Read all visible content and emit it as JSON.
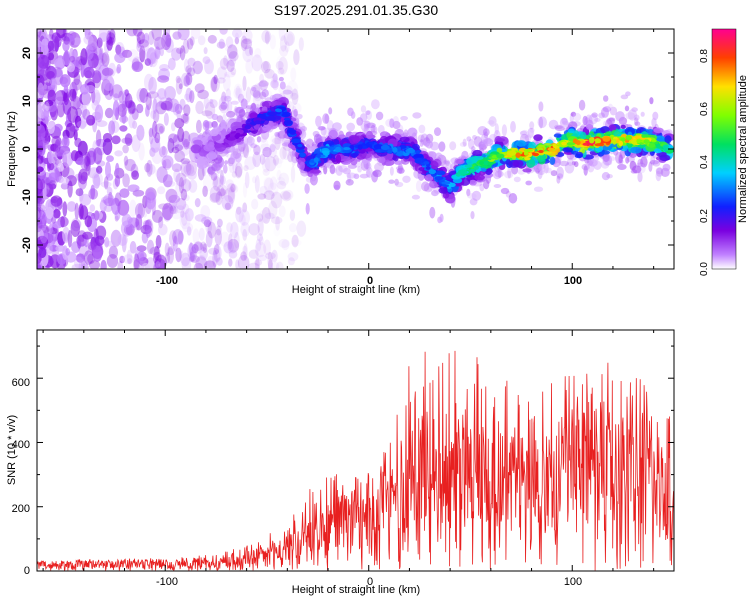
{
  "title": "S197.2025.291.01.35.G30",
  "chart_data": [
    {
      "type": "heatmap",
      "xlabel": "Height of straight line (km)",
      "ylabel": "Frequency (Hz)",
      "xlim": [
        -163,
        150
      ],
      "ylim": [
        -25,
        25
      ],
      "xticks": [
        -100,
        0,
        100
      ],
      "yticks": [
        -20,
        -10,
        0,
        10,
        20
      ],
      "colorbar_label": "Normalized spectral amplitude",
      "colorbar_range": [
        0,
        0.9
      ],
      "colorbar_ticks": [
        "0.0",
        "0.2",
        "0.4",
        "0.6",
        "0.8"
      ],
      "ridge": {
        "x": [
          -80,
          -65,
          -50,
          -42,
          -36,
          -30,
          -20,
          -10,
          0,
          10,
          20,
          30,
          40,
          45,
          55,
          65,
          80,
          90,
          98,
          105,
          120,
          135,
          148
        ],
        "frequency_hz": [
          0,
          3,
          7,
          8,
          2,
          -4,
          0,
          0,
          1,
          0,
          0,
          -4,
          -8,
          -5,
          -3,
          -1,
          -1,
          0,
          2,
          1,
          2,
          2,
          0
        ],
        "peak_amplitude": [
          0.1,
          0.15,
          0.25,
          0.3,
          0.25,
          0.3,
          0.35,
          0.3,
          0.25,
          0.3,
          0.3,
          0.3,
          0.35,
          0.45,
          0.55,
          0.65,
          0.8,
          0.8,
          0.6,
          0.85,
          0.75,
          0.7,
          0.45
        ]
      }
    },
    {
      "type": "line",
      "xlabel": "Height of straight line (km)",
      "ylabel": "SNR (10 * v/v)",
      "xlim": [
        -163,
        150
      ],
      "ylim": [
        0,
        750
      ],
      "xticks": [
        -100,
        0,
        100
      ],
      "yticks": [
        0,
        200,
        400,
        600
      ],
      "series": [
        {
          "name": "SNR",
          "color": "#e82020",
          "envelope_x": [
            -163,
            -100,
            -80,
            -60,
            -40,
            -30,
            -20,
            -10,
            0,
            10,
            20,
            30,
            40,
            50,
            60,
            70,
            80,
            90,
            100,
            110,
            120,
            130,
            140,
            150
          ],
          "envelope_peak": [
            35,
            40,
            50,
            80,
            150,
            250,
            300,
            330,
            340,
            400,
            660,
            740,
            700,
            680,
            640,
            600,
            560,
            590,
            640,
            620,
            660,
            600,
            680,
            500
          ],
          "envelope_mean": [
            20,
            22,
            25,
            40,
            70,
            100,
            130,
            160,
            180,
            220,
            280,
            320,
            330,
            320,
            310,
            290,
            270,
            300,
            320,
            300,
            320,
            290,
            330,
            200
          ]
        }
      ]
    }
  ]
}
